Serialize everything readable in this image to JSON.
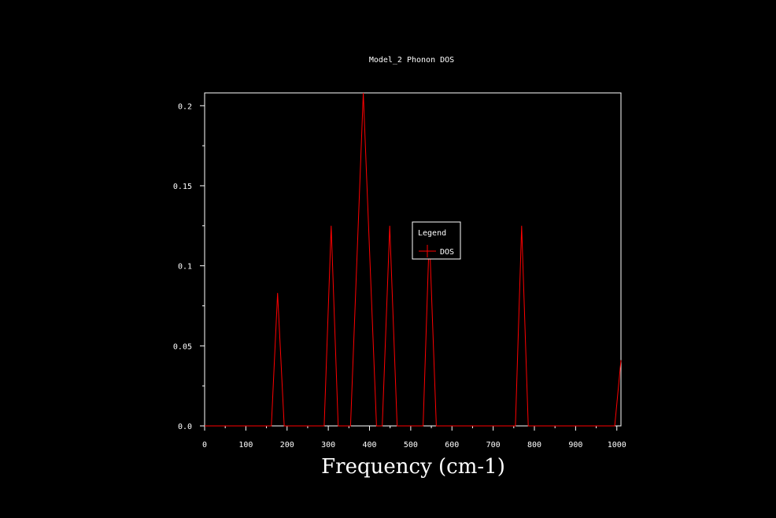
{
  "chart_data": {
    "type": "line",
    "title": "Model_2 Phonon DOS",
    "xlabel": "Frequency (cm-1)",
    "ylabel": "",
    "xlim": [
      0,
      1010
    ],
    "ylim": [
      0,
      0.208
    ],
    "x_ticks": [
      0,
      100,
      200,
      300,
      400,
      500,
      600,
      700,
      800,
      900,
      1000
    ],
    "x_tick_labels": [
      "0",
      "100",
      "200",
      "300",
      "400",
      "500",
      "600",
      "700",
      "800",
      "900",
      "1000"
    ],
    "y_ticks": [
      0,
      0.05,
      0.1,
      0.15,
      0.2
    ],
    "y_tick_labels": [
      "0.0",
      "0.05",
      "0.1",
      "0.15",
      "0.2"
    ],
    "grid": false,
    "legend": {
      "title": "Legend",
      "placement": "center",
      "entries": [
        "DOS"
      ]
    },
    "series": [
      {
        "name": "DOS",
        "color": "#ff0000",
        "x": [
          0,
          162,
          177,
          193,
          290,
          307,
          324,
          354,
          385,
          417,
          431,
          449,
          467,
          530,
          545,
          562,
          754,
          769,
          785,
          995,
          1010
        ],
        "y": [
          0,
          0,
          0.083,
          0,
          0,
          0.125,
          0,
          0,
          0.208,
          0,
          0,
          0.125,
          0,
          0,
          0.12,
          0,
          0,
          0.125,
          0,
          0,
          0.041
        ]
      }
    ]
  }
}
